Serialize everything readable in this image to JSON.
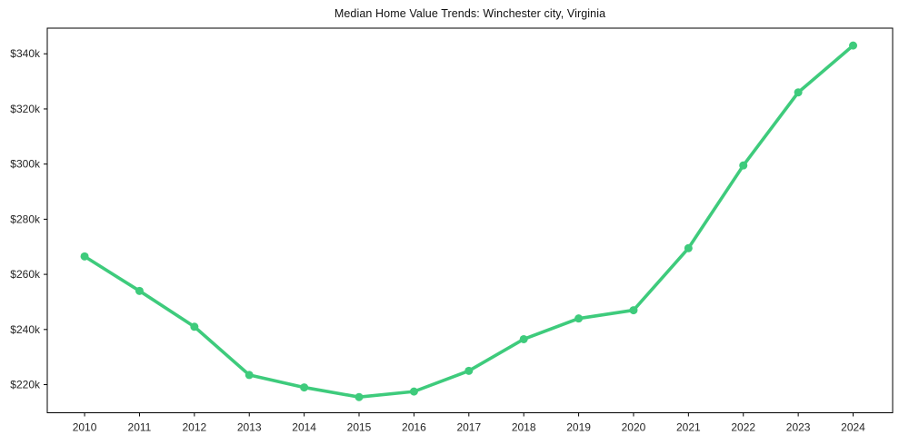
{
  "page": {
    "background": "#ffffff"
  },
  "chart_data": {
    "type": "line",
    "title": "Median Home Value Trends: Winchester city, Virginia",
    "x": [
      2010,
      2011,
      2012,
      2013,
      2014,
      2015,
      2016,
      2017,
      2018,
      2019,
      2020,
      2021,
      2022,
      2023,
      2024
    ],
    "values": [
      266500,
      254000,
      241000,
      223500,
      219000,
      215500,
      217500,
      225000,
      236500,
      244000,
      247000,
      269500,
      299500,
      326000,
      343000
    ],
    "xtick_labels": [
      "2010",
      "2011",
      "2012",
      "2013",
      "2014",
      "2015",
      "2016",
      "2017",
      "2018",
      "2019",
      "2020",
      "2021",
      "2022",
      "2023",
      "2024"
    ],
    "yticks": {
      "values": [
        220000,
        240000,
        260000,
        280000,
        300000,
        320000,
        340000
      ],
      "labels": [
        "$220k",
        "$240k",
        "$260k",
        "$280k",
        "$300k",
        "$320k",
        "$340k"
      ]
    },
    "xlabel": "",
    "ylabel": "",
    "xlim": [
      2009.32,
      2024.72
    ],
    "ylim": [
      209800,
      349300
    ],
    "grid": false,
    "legend": false,
    "marker": "circle",
    "line_color": "#3ecb7c",
    "axis_color": "#000000",
    "tick_label_color": "#262626",
    "line_width": 3.6,
    "marker_radius": 4.5
  }
}
